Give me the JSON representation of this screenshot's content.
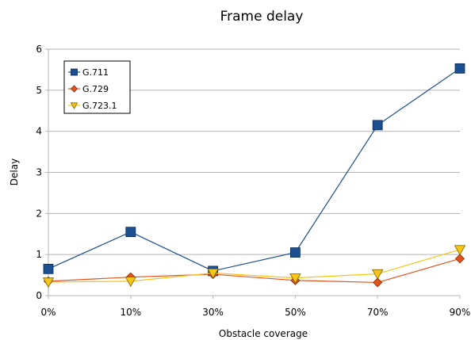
{
  "chart_data": {
    "type": "line",
    "title": "Frame delay",
    "xlabel": "Obstacle coverage",
    "ylabel": "Delay",
    "categories": [
      "0%",
      "10%",
      "30%",
      "50%",
      "70%",
      "90%"
    ],
    "ylim": [
      0,
      6
    ],
    "yticks": [
      0,
      1,
      2,
      3,
      4,
      5,
      6
    ],
    "grid": true,
    "legend_position": "top-left",
    "series": [
      {
        "name": "G.711",
        "values": [
          0.65,
          1.55,
          0.6,
          1.05,
          4.15,
          5.53
        ],
        "color": "#1c4f8f",
        "marker": "square"
      },
      {
        "name": "G.729",
        "values": [
          0.35,
          0.45,
          0.52,
          0.37,
          0.32,
          0.9
        ],
        "color": "#e0541c",
        "marker": "diamond"
      },
      {
        "name": "G.723.1",
        "values": [
          0.33,
          0.35,
          0.55,
          0.43,
          0.53,
          1.12
        ],
        "color": "#f5c518",
        "marker": "triangle-down"
      }
    ]
  }
}
